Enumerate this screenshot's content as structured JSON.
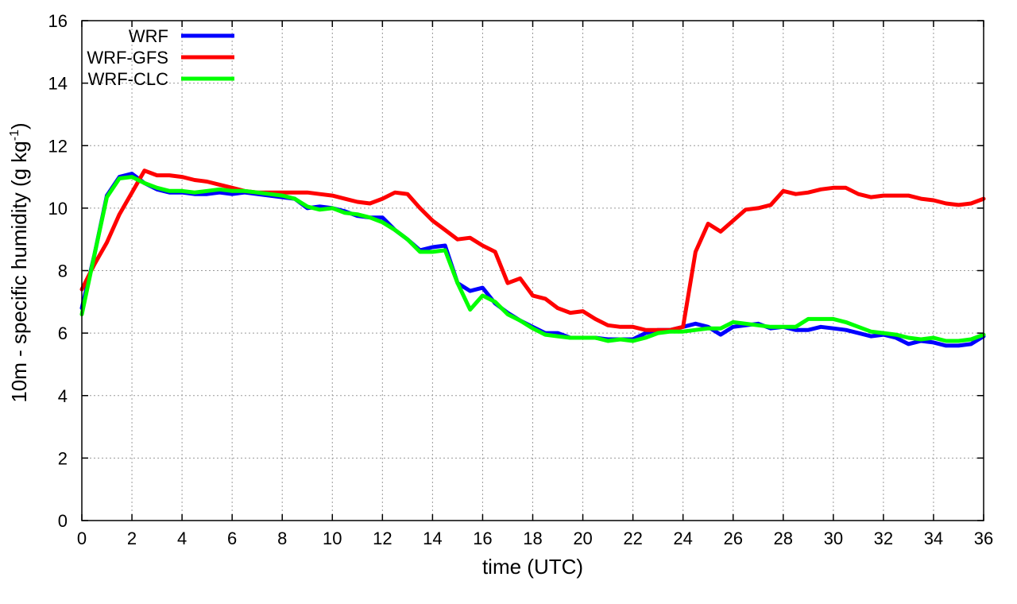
{
  "chart_data": {
    "type": "line",
    "title": "",
    "xlabel": "time (UTC)",
    "ylabel_main": "10m - specific humidity (g kg",
    "ylabel_sup": "-1",
    "ylabel_end": ")",
    "xlim": [
      0,
      36
    ],
    "ylim": [
      0,
      16
    ],
    "xticks": [
      0,
      2,
      4,
      6,
      8,
      10,
      12,
      14,
      16,
      18,
      20,
      22,
      24,
      26,
      28,
      30,
      32,
      34,
      36
    ],
    "yticks": [
      0,
      2,
      4,
      6,
      8,
      10,
      12,
      14,
      16
    ],
    "grid": true,
    "legend_position": "top-left",
    "series": [
      {
        "name": "WRF",
        "color": "#0000ff",
        "x": [
          0,
          0.5,
          1,
          1.5,
          2,
          2.5,
          3,
          3.5,
          4,
          4.5,
          5,
          5.5,
          6,
          6.5,
          7,
          7.5,
          8,
          8.5,
          9,
          9.5,
          10,
          10.5,
          11,
          11.5,
          12,
          12.5,
          13,
          13.5,
          14,
          14.5,
          15,
          15.5,
          16,
          16.5,
          17,
          17.5,
          18,
          18.5,
          19,
          19.5,
          20,
          20.5,
          21,
          21.5,
          22,
          22.5,
          23,
          23.5,
          24,
          24.5,
          25,
          25.5,
          26,
          26.5,
          27,
          27.5,
          28,
          28.5,
          29,
          29.5,
          30,
          30.5,
          31,
          31.5,
          32,
          32.5,
          33,
          33.5,
          34,
          34.5,
          35,
          35.5,
          36
        ],
        "y": [
          6.8,
          8.5,
          10.4,
          11.0,
          11.1,
          10.8,
          10.6,
          10.5,
          10.5,
          10.45,
          10.45,
          10.5,
          10.45,
          10.5,
          10.45,
          10.4,
          10.35,
          10.3,
          10.0,
          10.05,
          10.0,
          9.9,
          9.75,
          9.7,
          9.7,
          9.3,
          9.0,
          8.65,
          8.75,
          8.8,
          7.6,
          7.35,
          7.45,
          6.95,
          6.65,
          6.4,
          6.2,
          6.0,
          6.0,
          5.85,
          5.85,
          5.85,
          5.8,
          5.8,
          5.8,
          6.0,
          6.1,
          6.1,
          6.2,
          6.3,
          6.2,
          5.95,
          6.2,
          6.25,
          6.3,
          6.15,
          6.2,
          6.1,
          6.1,
          6.2,
          6.15,
          6.1,
          6.0,
          5.9,
          5.95,
          5.85,
          5.65,
          5.75,
          5.7,
          5.6,
          5.6,
          5.65,
          5.9
        ]
      },
      {
        "name": "WRF-GFS",
        "color": "#ff0000",
        "x": [
          0,
          0.5,
          1,
          1.5,
          2,
          2.5,
          3,
          3.5,
          4,
          4.5,
          5,
          5.5,
          6,
          6.5,
          7,
          7.5,
          8,
          8.5,
          9,
          9.5,
          10,
          10.5,
          11,
          11.5,
          12,
          12.5,
          13,
          13.5,
          14,
          14.5,
          15,
          15.5,
          16,
          16.5,
          17,
          17.5,
          18,
          18.5,
          19,
          19.5,
          20,
          20.5,
          21,
          21.5,
          22,
          22.5,
          23,
          23.5,
          24,
          24.5,
          25,
          25.5,
          26,
          26.5,
          27,
          27.5,
          28,
          28.5,
          29,
          29.5,
          30,
          30.5,
          31,
          31.5,
          32,
          32.5,
          33,
          33.5,
          34,
          34.5,
          35,
          35.5,
          36
        ],
        "y": [
          7.4,
          8.2,
          8.9,
          9.8,
          10.5,
          11.2,
          11.05,
          11.05,
          11.0,
          10.9,
          10.85,
          10.75,
          10.65,
          10.55,
          10.5,
          10.5,
          10.5,
          10.5,
          10.5,
          10.45,
          10.4,
          10.3,
          10.2,
          10.15,
          10.3,
          10.5,
          10.45,
          10.0,
          9.6,
          9.3,
          9.0,
          9.05,
          8.8,
          8.6,
          7.6,
          7.75,
          7.2,
          7.1,
          6.8,
          6.65,
          6.7,
          6.45,
          6.25,
          6.2,
          6.2,
          6.1,
          6.1,
          6.1,
          6.2,
          8.6,
          9.5,
          9.25,
          9.6,
          9.95,
          10.0,
          10.1,
          10.55,
          10.45,
          10.5,
          10.6,
          10.65,
          10.65,
          10.45,
          10.35,
          10.4,
          10.4,
          10.4,
          10.3,
          10.25,
          10.15,
          10.1,
          10.15,
          10.3
        ]
      },
      {
        "name": "WRF-CLC",
        "color": "#00ff00",
        "x": [
          0,
          0.5,
          1,
          1.5,
          2,
          2.5,
          3,
          3.5,
          4,
          4.5,
          5,
          5.5,
          6,
          6.5,
          7,
          7.5,
          8,
          8.5,
          9,
          9.5,
          10,
          10.5,
          11,
          11.5,
          12,
          12.5,
          13,
          13.5,
          14,
          14.5,
          15,
          15.5,
          16,
          16.5,
          17,
          17.5,
          18,
          18.5,
          19,
          19.5,
          20,
          20.5,
          21,
          21.5,
          22,
          22.5,
          23,
          23.5,
          24,
          24.5,
          25,
          25.5,
          26,
          26.5,
          27,
          27.5,
          28,
          28.5,
          29,
          29.5,
          30,
          30.5,
          31,
          31.5,
          32,
          32.5,
          33,
          33.5,
          34,
          34.5,
          35,
          35.5,
          36
        ],
        "y": [
          6.6,
          8.5,
          10.35,
          10.95,
          11.0,
          10.8,
          10.65,
          10.55,
          10.55,
          10.5,
          10.55,
          10.6,
          10.55,
          10.55,
          10.5,
          10.45,
          10.4,
          10.3,
          10.05,
          9.95,
          10.0,
          9.85,
          9.8,
          9.7,
          9.55,
          9.3,
          9.0,
          8.6,
          8.6,
          8.65,
          7.6,
          6.75,
          7.2,
          7.0,
          6.6,
          6.4,
          6.15,
          5.95,
          5.9,
          5.85,
          5.85,
          5.85,
          5.75,
          5.8,
          5.75,
          5.85,
          6.0,
          6.05,
          6.05,
          6.1,
          6.15,
          6.15,
          6.35,
          6.3,
          6.25,
          6.2,
          6.2,
          6.2,
          6.45,
          6.45,
          6.45,
          6.35,
          6.2,
          6.05,
          6.0,
          5.95,
          5.85,
          5.8,
          5.85,
          5.75,
          5.75,
          5.8,
          5.95
        ]
      }
    ]
  }
}
